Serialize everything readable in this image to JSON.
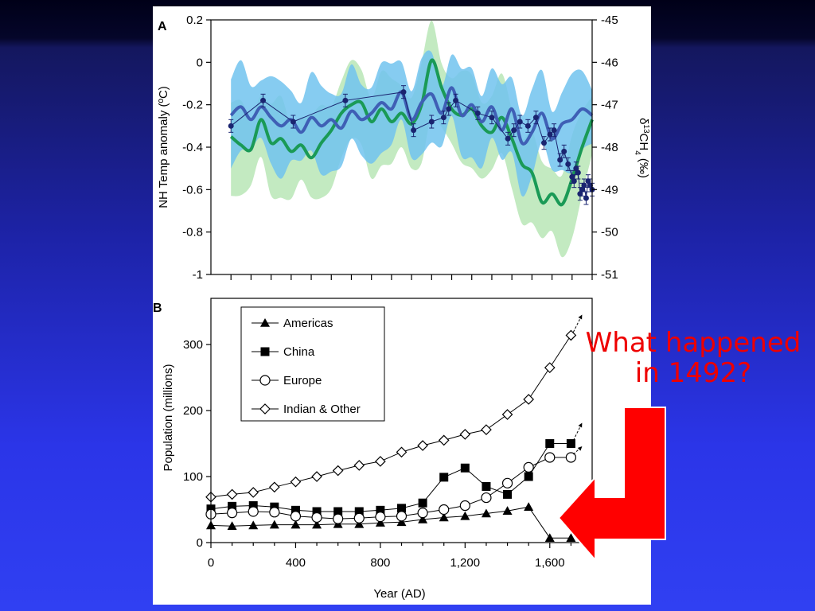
{
  "callout": {
    "line1": "What happened",
    "line2": "in 1492?",
    "color": "#ff0000"
  },
  "chart_data": [
    {
      "panel": "A",
      "type": "line",
      "xlim": [
        -100,
        1800
      ],
      "ylabel": "NH Temp anomaly (ºC)",
      "ylim": [
        -1,
        0.2
      ],
      "yticks": [
        "0.2",
        "0",
        "-0.2",
        "-0.4",
        "-0.6",
        "-0.8",
        "-1"
      ],
      "ylabel_right_parts": [
        "δ",
        "13",
        "CH",
        "4",
        " (‰)"
      ],
      "ylim_right": [
        -51,
        -45
      ],
      "yticks_right": [
        "-45",
        "-46",
        "-47",
        "-48",
        "-49",
        "-50",
        "-51"
      ],
      "colors": {
        "blue": "#3f5fb5",
        "green": "#1a9a56",
        "blue_band": "#71c3ee",
        "green_band": "#b8e6b6",
        "points": "#1a2470"
      },
      "series": [
        {
          "style": "thick-blue-line",
          "x": [
            0,
            50,
            100,
            150,
            200,
            250,
            300,
            350,
            400,
            450,
            500,
            550,
            600,
            650,
            700,
            750,
            800,
            850,
            900,
            950,
            1000,
            1050,
            1100,
            1150,
            1200,
            1250,
            1300,
            1350,
            1400,
            1450,
            1500,
            1550,
            1600,
            1650,
            1700,
            1750,
            1800
          ],
          "y": [
            -0.25,
            -0.21,
            -0.27,
            -0.21,
            -0.26,
            -0.3,
            -0.27,
            -0.33,
            -0.26,
            -0.3,
            -0.27,
            -0.31,
            -0.23,
            -0.27,
            -0.24,
            -0.19,
            -0.22,
            -0.14,
            -0.27,
            -0.19,
            -0.15,
            -0.24,
            -0.12,
            -0.25,
            -0.2,
            -0.28,
            -0.21,
            -0.32,
            -0.22,
            -0.38,
            -0.33,
            -0.24,
            -0.36,
            -0.29,
            -0.27,
            -0.22,
            -0.25
          ]
        },
        {
          "style": "thick-green-line",
          "x": [
            0,
            50,
            100,
            150,
            200,
            250,
            300,
            350,
            400,
            450,
            500,
            550,
            600,
            650,
            700,
            750,
            800,
            850,
            900,
            950,
            1000,
            1050,
            1100,
            1150,
            1200,
            1250,
            1300,
            1350,
            1400,
            1450,
            1500,
            1550,
            1600,
            1650,
            1700,
            1750,
            1800
          ],
          "y": [
            -0.35,
            -0.39,
            -0.41,
            -0.27,
            -0.38,
            -0.36,
            -0.42,
            -0.39,
            -0.45,
            -0.38,
            -0.32,
            -0.24,
            -0.2,
            -0.19,
            -0.28,
            -0.22,
            -0.28,
            -0.24,
            -0.29,
            -0.2,
            0.01,
            -0.12,
            -0.22,
            -0.25,
            -0.22,
            -0.3,
            -0.33,
            -0.26,
            -0.36,
            -0.48,
            -0.52,
            -0.66,
            -0.62,
            -0.67,
            -0.55,
            -0.4,
            -0.27
          ]
        },
        {
          "style": "points-with-error-bars",
          "x": [
            0,
            160,
            310,
            570,
            860,
            910,
            1000,
            1060,
            1085,
            1120,
            1230,
            1300,
            1380,
            1410,
            1440,
            1480,
            1520,
            1560,
            1590,
            1610,
            1640,
            1660,
            1680,
            1700,
            1710,
            1720,
            1730,
            1740,
            1750,
            1760,
            1770,
            1780,
            1790,
            1800
          ],
          "y": [
            -47.5,
            -46.9,
            -47.4,
            -46.9,
            -46.7,
            -47.6,
            -47.4,
            -47.3,
            -47.1,
            -46.9,
            -47.2,
            -47.3,
            -47.8,
            -47.6,
            -47.4,
            -47.5,
            -47.3,
            -47.9,
            -47.7,
            -47.6,
            -48.3,
            -48.1,
            -48.4,
            -48.7,
            -48.8,
            -48.5,
            -48.6,
            -49.1,
            -49.0,
            -48.9,
            -49.2,
            -48.8,
            -48.9,
            -49.0
          ]
        }
      ]
    },
    {
      "panel": "B",
      "type": "line",
      "xlabel": "Year (AD)",
      "ylabel": "Population (millions)",
      "xlim": [
        0,
        1800
      ],
      "ylim": [
        0,
        370
      ],
      "xticks": [
        "0",
        "400",
        "800",
        "1,200",
        "1,600"
      ],
      "yticks": [
        "0",
        "100",
        "200",
        "300"
      ],
      "legend_position": "top-left",
      "categories": [
        0,
        100,
        200,
        300,
        400,
        500,
        600,
        700,
        800,
        900,
        1000,
        1100,
        1200,
        1300,
        1400,
        1500,
        1600,
        1700
      ],
      "series": [
        {
          "name": "Americas",
          "marker": "filled-triangle",
          "values": [
            26,
            25,
            26,
            27,
            27,
            27,
            28,
            28,
            30,
            31,
            35,
            38,
            40,
            44,
            48,
            54,
            7,
            7
          ]
        },
        {
          "name": "China",
          "marker": "filled-square",
          "values": [
            51,
            55,
            56,
            54,
            49,
            47,
            47,
            47,
            49,
            52,
            60,
            99,
            113,
            85,
            73,
            100,
            150,
            150
          ]
        },
        {
          "name": "Europe",
          "marker": "open-circle",
          "values": [
            43,
            45,
            47,
            46,
            40,
            38,
            36,
            37,
            39,
            40,
            45,
            50,
            56,
            68,
            90,
            114,
            129,
            129
          ]
        },
        {
          "name": "Indian & Other",
          "marker": "open-diamond",
          "values": [
            69,
            73,
            76,
            84,
            92,
            100,
            109,
            117,
            123,
            137,
            147,
            155,
            164,
            171,
            194,
            217,
            265,
            314
          ]
        }
      ]
    }
  ]
}
